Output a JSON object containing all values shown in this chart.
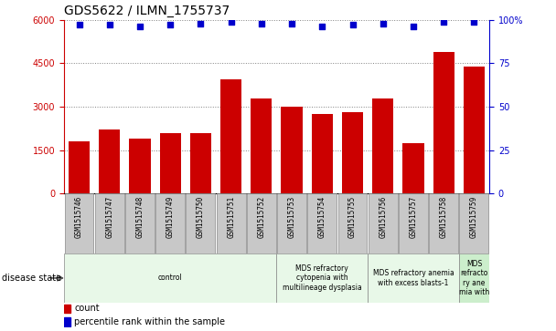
{
  "title": "GDS5622 / ILMN_1755737",
  "samples": [
    "GSM1515746",
    "GSM1515747",
    "GSM1515748",
    "GSM1515749",
    "GSM1515750",
    "GSM1515751",
    "GSM1515752",
    "GSM1515753",
    "GSM1515754",
    "GSM1515755",
    "GSM1515756",
    "GSM1515757",
    "GSM1515758",
    "GSM1515759"
  ],
  "counts": [
    1800,
    2200,
    1900,
    2100,
    2100,
    3950,
    3300,
    3000,
    2750,
    2800,
    3300,
    1750,
    4900,
    4400
  ],
  "percentile_ranks": [
    97,
    97,
    96,
    97,
    98,
    99,
    98,
    98,
    96,
    97,
    98,
    96,
    99,
    99
  ],
  "bar_color": "#cc0000",
  "dot_color": "#0000cc",
  "ylim_left": [
    0,
    6000
  ],
  "ylim_right": [
    0,
    100
  ],
  "yticks_left": [
    0,
    1500,
    3000,
    4500,
    6000
  ],
  "yticks_right": [
    0,
    25,
    50,
    75,
    100
  ],
  "disease_groups": [
    {
      "label": "control",
      "start": 0,
      "end": 7,
      "color": "#e8f8e8"
    },
    {
      "label": "MDS refractory\ncytopenia with\nmultilineage dysplasia",
      "start": 7,
      "end": 10,
      "color": "#e8f8e8"
    },
    {
      "label": "MDS refractory anemia\nwith excess blasts-1",
      "start": 10,
      "end": 13,
      "color": "#e8f8e8"
    },
    {
      "label": "MDS\nrefracto\nry ane\nmia with",
      "start": 13,
      "end": 14,
      "color": "#cceecc"
    }
  ],
  "disease_state_label": "disease state",
  "legend_count_label": "count",
  "legend_pct_label": "percentile rank within the sample",
  "tick_label_color_left": "#cc0000",
  "tick_label_color_right": "#0000cc",
  "sample_box_color": "#c8c8c8",
  "title_fontsize": 10,
  "axis_fontsize": 7,
  "label_fontsize": 6,
  "legend_fontsize": 7
}
